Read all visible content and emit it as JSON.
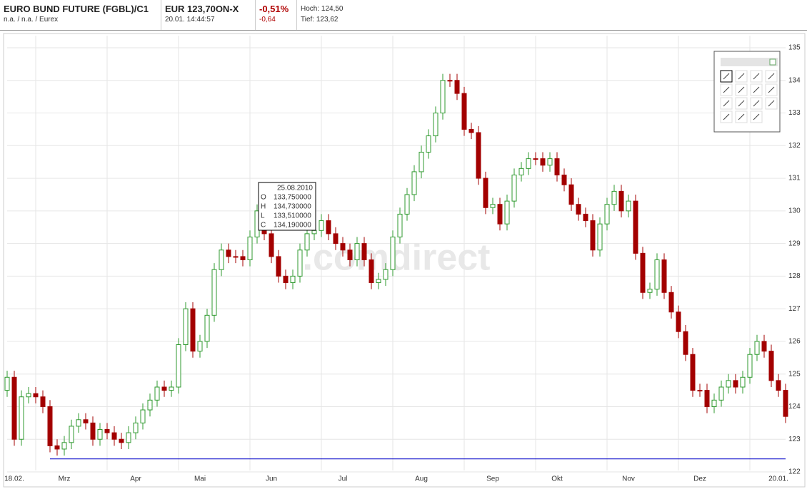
{
  "header": {
    "title": "EURO BUND FUTURE (FGBL)/C1",
    "exchange": "n.a. / n.a. / Eurex",
    "price": "EUR 123,70ON-X",
    "time": "20.01. 14:44:57",
    "change_percent": "-0,51%",
    "change_absolute": "-0,64",
    "high": "Hoch: 124,50",
    "low": "Tief: 123,62"
  },
  "watermark": ".comdirect",
  "tooltip": {
    "date": "25.08.2010",
    "rows": [
      {
        "label": "O",
        "value": "133,750000"
      },
      {
        "label": "H",
        "value": "134,730000"
      },
      {
        "label": "L",
        "value": "133,510000"
      },
      {
        "label": "C",
        "value": "134,190000"
      }
    ]
  },
  "chart_data": {
    "type": "candlestick",
    "categories": [
      null,
      "18.02.",
      null,
      null,
      null,
      null,
      null,
      null,
      "Mrz",
      null,
      null,
      null,
      null,
      null,
      null,
      null,
      null,
      null,
      "Apr",
      null,
      null,
      null,
      null,
      null,
      null,
      null,
      null,
      "Mai",
      null,
      null,
      null,
      null,
      null,
      null,
      null,
      null,
      null,
      "Jun",
      null,
      null,
      null,
      null,
      null,
      null,
      null,
      null,
      null,
      "Jul",
      null,
      null,
      null,
      null,
      null,
      null,
      null,
      null,
      null,
      null,
      "Aug",
      null,
      null,
      null,
      null,
      null,
      null,
      null,
      null,
      null,
      "Sep",
      null,
      null,
      null,
      null,
      null,
      null,
      null,
      null,
      "Okt",
      null,
      null,
      null,
      null,
      null,
      null,
      null,
      null,
      null,
      "Nov",
      null,
      null,
      null,
      null,
      null,
      null,
      null,
      null,
      null,
      "Dez",
      null,
      null,
      null,
      null,
      null,
      null,
      null,
      null,
      null,
      null,
      "20.01.",
      null
    ],
    "series": [
      {
        "up_color": "#2f9a2f",
        "down_color": "#a30000",
        "open": [
          124.5,
          124.9,
          123.0,
          124.3,
          124.4,
          124.3,
          124.0,
          122.8,
          122.7,
          122.9,
          123.4,
          123.6,
          123.5,
          123.0,
          123.3,
          123.2,
          123.0,
          122.9,
          123.2,
          123.5,
          123.9,
          124.2,
          124.6,
          124.5,
          124.6,
          125.9,
          127.0,
          125.7,
          126.0,
          126.8,
          128.2,
          128.8,
          128.6,
          128.6,
          128.5,
          129.2,
          130.0,
          129.3,
          128.6,
          128.0,
          127.8,
          128.0,
          128.8,
          129.3,
          129.4,
          129.7,
          129.3,
          129.0,
          128.8,
          128.5,
          129.0,
          128.5,
          127.8,
          127.9,
          128.2,
          129.2,
          129.9,
          130.5,
          131.2,
          131.8,
          132.3,
          133.0,
          134.0,
          134.0,
          133.6,
          132.5,
          132.4,
          131.0,
          130.1,
          130.2,
          129.6,
          130.3,
          131.1,
          131.3,
          131.6,
          131.6,
          131.4,
          131.6,
          131.1,
          130.8,
          130.2,
          129.9,
          129.7,
          128.8,
          129.6,
          130.2,
          130.6,
          130.0,
          130.3,
          128.7,
          127.5,
          127.6,
          128.5,
          127.5,
          126.9,
          126.3,
          125.6,
          124.5,
          124.5,
          124.0,
          124.2,
          124.6,
          124.8,
          124.6,
          124.9,
          125.6,
          126.0,
          125.7,
          124.8,
          124.5
        ],
        "high": [
          125.1,
          125.1,
          124.5,
          124.6,
          124.6,
          124.5,
          124.2,
          123.0,
          123.1,
          123.6,
          123.8,
          123.8,
          123.7,
          123.5,
          123.5,
          123.4,
          123.2,
          123.4,
          123.7,
          124.1,
          124.4,
          124.8,
          124.8,
          124.8,
          126.1,
          127.2,
          127.2,
          126.2,
          127.0,
          128.4,
          129.0,
          129.0,
          128.8,
          128.8,
          129.4,
          130.2,
          130.2,
          129.5,
          128.8,
          128.2,
          128.2,
          129.0,
          129.5,
          129.6,
          129.9,
          129.9,
          129.5,
          129.2,
          129.0,
          129.2,
          129.2,
          128.7,
          128.1,
          128.4,
          129.4,
          130.1,
          130.7,
          131.4,
          132.0,
          132.5,
          133.2,
          134.2,
          134.2,
          134.2,
          133.8,
          132.7,
          132.6,
          131.2,
          130.4,
          130.4,
          130.5,
          131.3,
          131.5,
          131.8,
          131.8,
          131.8,
          131.8,
          131.8,
          131.3,
          131.0,
          130.4,
          130.1,
          129.9,
          129.8,
          130.4,
          130.8,
          130.8,
          130.5,
          130.5,
          128.9,
          127.8,
          128.7,
          128.7,
          127.7,
          127.1,
          126.5,
          125.8,
          124.7,
          124.7,
          124.4,
          124.8,
          125.0,
          125.0,
          125.1,
          125.8,
          126.2,
          126.2,
          125.9,
          125.0,
          124.7
        ],
        "low": [
          124.3,
          122.8,
          122.8,
          124.1,
          124.1,
          123.8,
          122.6,
          122.5,
          122.5,
          122.7,
          123.2,
          123.3,
          122.8,
          122.8,
          123.0,
          122.8,
          122.7,
          122.7,
          123.0,
          123.3,
          123.7,
          124.0,
          124.3,
          124.3,
          124.4,
          125.7,
          125.5,
          125.5,
          125.8,
          126.6,
          128.0,
          128.4,
          128.4,
          128.3,
          128.3,
          129.0,
          129.1,
          128.4,
          127.8,
          127.6,
          127.6,
          127.8,
          128.6,
          129.1,
          129.2,
          129.1,
          128.8,
          128.6,
          128.3,
          128.3,
          128.3,
          127.6,
          127.6,
          127.7,
          128.0,
          129.0,
          129.7,
          130.3,
          131.0,
          131.6,
          132.1,
          132.8,
          133.8,
          133.4,
          132.3,
          132.2,
          130.8,
          129.9,
          129.9,
          129.4,
          129.4,
          130.1,
          130.9,
          131.1,
          131.4,
          131.2,
          131.2,
          130.9,
          130.6,
          130.0,
          129.7,
          129.5,
          128.6,
          128.6,
          129.4,
          130.0,
          129.8,
          129.8,
          128.5,
          127.3,
          127.3,
          127.4,
          127.3,
          126.7,
          126.1,
          125.4,
          124.3,
          124.3,
          123.8,
          123.8,
          124.0,
          124.4,
          124.4,
          124.4,
          124.7,
          125.4,
          125.5,
          124.6,
          124.3,
          123.5
        ],
        "close": [
          124.9,
          123.0,
          124.3,
          124.4,
          124.3,
          124.0,
          122.8,
          122.7,
          122.9,
          123.4,
          123.6,
          123.5,
          123.0,
          123.3,
          123.2,
          123.0,
          122.9,
          123.2,
          123.5,
          123.9,
          124.2,
          124.6,
          124.5,
          124.6,
          125.9,
          127.0,
          125.7,
          126.0,
          126.8,
          128.2,
          128.8,
          128.6,
          128.6,
          128.5,
          129.2,
          130.0,
          129.3,
          128.6,
          128.0,
          127.8,
          128.0,
          128.8,
          129.3,
          129.4,
          129.7,
          129.3,
          129.0,
          128.8,
          128.5,
          129.0,
          128.5,
          127.8,
          127.9,
          128.2,
          129.2,
          129.9,
          130.5,
          131.2,
          131.8,
          132.3,
          133.0,
          134.0,
          134.0,
          133.6,
          132.5,
          132.4,
          131.0,
          130.1,
          130.2,
          129.6,
          130.3,
          131.1,
          131.3,
          131.6,
          131.6,
          131.4,
          131.6,
          131.1,
          130.8,
          130.2,
          129.9,
          129.7,
          128.8,
          129.6,
          130.2,
          130.6,
          130.0,
          130.3,
          128.7,
          127.5,
          127.6,
          128.5,
          127.5,
          126.9,
          126.3,
          125.6,
          124.5,
          124.5,
          124.0,
          124.2,
          124.6,
          124.8,
          124.6,
          124.9,
          125.6,
          126.0,
          125.7,
          124.8,
          124.5,
          123.7
        ]
      }
    ],
    "hline": {
      "value": 122.4,
      "color": "#0000c8"
    },
    "ylim": [
      122,
      135
    ],
    "yticks": [
      122,
      123,
      124,
      125,
      126,
      127,
      128,
      129,
      130,
      131,
      132,
      133,
      134,
      135
    ],
    "grid": true
  }
}
